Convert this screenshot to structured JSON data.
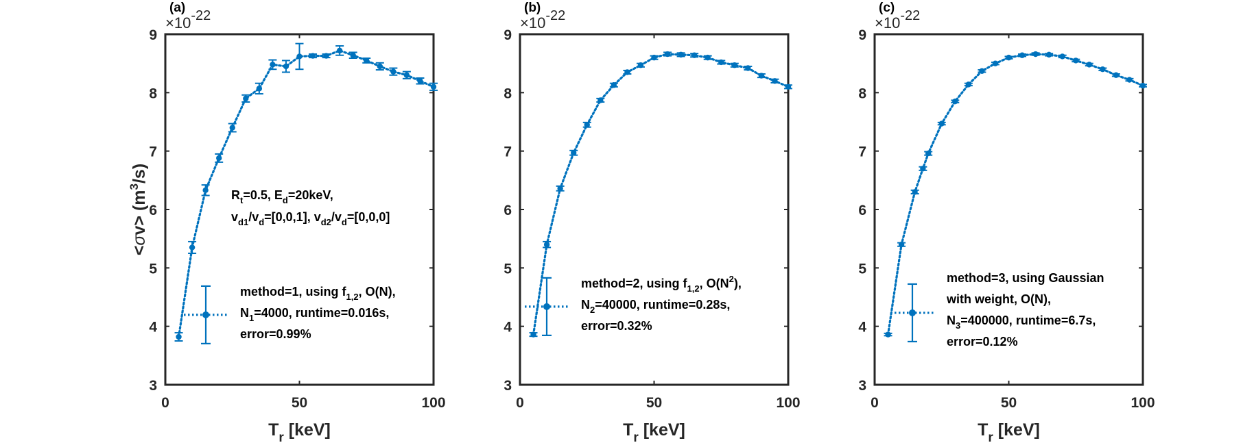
{
  "colors": {
    "series": "#0072BD",
    "axis": "#262626",
    "background": "#ffffff"
  },
  "figure": {
    "ylabel_prefix": "<",
    "ylabel_sigma": "σ",
    "ylabel_mid": "v> (m",
    "ylabel_sup": "3",
    "ylabel_suffix": "/s)",
    "xlabel_main": "T",
    "xlabel_sub": "r",
    "xlabel_suffix": " [keV]",
    "exponent_base": "×10",
    "exponent_power": "-22"
  },
  "annotation": {
    "line1": [
      {
        "t": "R"
      },
      {
        "t": "t",
        "s": "sub"
      },
      {
        "t": "=0.5, E"
      },
      {
        "t": "d",
        "s": "sub"
      },
      {
        "t": "=20keV,"
      }
    ],
    "line2": [
      {
        "t": "v"
      },
      {
        "t": "d1",
        "s": "sub"
      },
      {
        "t": "/v"
      },
      {
        "t": "d",
        "s": "sub"
      },
      {
        "t": "=[0,0,1], v"
      },
      {
        "t": "d2",
        "s": "sub"
      },
      {
        "t": "/v"
      },
      {
        "t": "d",
        "s": "sub"
      },
      {
        "t": "=[0,0,0]"
      }
    ]
  },
  "chart_data": [
    {
      "type": "line",
      "panel_label": "(a)",
      "xlim": [
        0,
        100
      ],
      "ylim": [
        3,
        9
      ],
      "xticks": [
        "0",
        "50",
        "100"
      ],
      "yticks": [
        "3",
        "4",
        "5",
        "6",
        "7",
        "8",
        "9"
      ],
      "y_scale_exponent": "×10^-22",
      "grid": false,
      "legend_placement": "bottom-right",
      "series": [
        {
          "x": [
            5,
            10,
            15,
            20,
            25,
            30,
            35,
            40,
            45,
            50,
            55,
            60,
            65,
            70,
            75,
            80,
            85,
            90,
            95,
            100
          ],
          "values": [
            3.82,
            5.35,
            6.33,
            6.88,
            7.4,
            7.9,
            8.07,
            8.48,
            8.45,
            8.62,
            8.63,
            8.63,
            8.72,
            8.64,
            8.55,
            8.45,
            8.36,
            8.3,
            8.2,
            8.1
          ],
          "errors": [
            0.07,
            0.1,
            0.09,
            0.07,
            0.07,
            0.06,
            0.09,
            0.08,
            0.1,
            0.22,
            0.03,
            0.03,
            0.08,
            0.05,
            0.04,
            0.06,
            0.06,
            0.06,
            0.05,
            0.06
          ]
        }
      ],
      "legend": [
        [
          {
            "t": "method=1, using f"
          },
          {
            "t": "1,2",
            "s": "sub"
          },
          {
            "t": ", O(N),"
          }
        ],
        [
          {
            "t": "N"
          },
          {
            "t": "1",
            "s": "sub"
          },
          {
            "t": "=4000, runtime=0.016s,"
          }
        ],
        [
          {
            "t": "error=0.99%"
          }
        ]
      ]
    },
    {
      "type": "line",
      "panel_label": "(b)",
      "xlim": [
        0,
        100
      ],
      "ylim": [
        3,
        9
      ],
      "xticks": [
        "0",
        "50",
        "100"
      ],
      "yticks": [
        "3",
        "4",
        "5",
        "6",
        "7",
        "8",
        "9"
      ],
      "y_scale_exponent": "×10^-22",
      "grid": false,
      "legend_placement": "bottom-right",
      "series": [
        {
          "x": [
            5,
            10,
            15,
            20,
            25,
            30,
            35,
            40,
            45,
            50,
            55,
            60,
            65,
            70,
            75,
            80,
            85,
            90,
            95,
            100
          ],
          "values": [
            3.86,
            5.4,
            6.36,
            6.97,
            7.45,
            7.87,
            8.13,
            8.35,
            8.47,
            8.6,
            8.66,
            8.65,
            8.64,
            8.6,
            8.52,
            8.47,
            8.42,
            8.29,
            8.2,
            8.1
          ],
          "errors": [
            0.03,
            0.05,
            0.04,
            0.04,
            0.04,
            0.03,
            0.03,
            0.03,
            0.03,
            0.03,
            0.03,
            0.03,
            0.03,
            0.03,
            0.03,
            0.03,
            0.03,
            0.03,
            0.03,
            0.03
          ]
        }
      ],
      "legend": [
        [
          {
            "t": "method=2, using f"
          },
          {
            "t": "1,2",
            "s": "sub"
          },
          {
            "t": ", O(N"
          },
          {
            "t": "2",
            "s": "sup"
          },
          {
            "t": "),"
          }
        ],
        [
          {
            "t": "N"
          },
          {
            "t": "2",
            "s": "sub"
          },
          {
            "t": "=40000, runtime=0.28s,"
          }
        ],
        [
          {
            "t": "error=0.32%"
          }
        ]
      ]
    },
    {
      "type": "line",
      "panel_label": "(c)",
      "xlim": [
        0,
        100
      ],
      "ylim": [
        3,
        9
      ],
      "xticks": [
        "0",
        "50",
        "100"
      ],
      "yticks": [
        "3",
        "4",
        "5",
        "6",
        "7",
        "8",
        "9"
      ],
      "y_scale_exponent": "×10^-22",
      "grid": false,
      "legend_placement": "bottom-right",
      "series": [
        {
          "x": [
            5,
            10,
            15,
            18,
            20,
            25,
            30,
            35,
            40,
            45,
            50,
            55,
            60,
            65,
            70,
            75,
            80,
            85,
            90,
            95,
            100
          ],
          "values": [
            3.86,
            5.4,
            6.3,
            6.7,
            6.96,
            7.47,
            7.85,
            8.14,
            8.37,
            8.5,
            8.6,
            8.64,
            8.66,
            8.65,
            8.62,
            8.55,
            8.48,
            8.4,
            8.3,
            8.22,
            8.12
          ],
          "errors": [
            0.02,
            0.03,
            0.03,
            0.03,
            0.03,
            0.02,
            0.02,
            0.02,
            0.02,
            0.02,
            0.02,
            0.02,
            0.02,
            0.02,
            0.02,
            0.02,
            0.02,
            0.02,
            0.02,
            0.02,
            0.02
          ]
        }
      ],
      "legend": [
        [
          {
            "t": "method=3, using Gaussian"
          }
        ],
        [
          {
            "t": "with weight, O(N),"
          }
        ],
        [
          {
            "t": "N"
          },
          {
            "t": "3",
            "s": "sub"
          },
          {
            "t": "=400000, runtime=6.7s,"
          }
        ],
        [
          {
            "t": "error=0.12%"
          }
        ]
      ]
    }
  ]
}
